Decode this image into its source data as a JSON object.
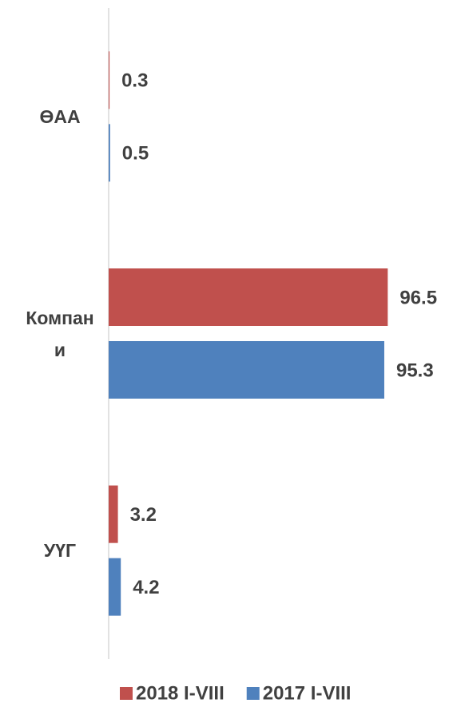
{
  "chart_data": {
    "type": "barh",
    "categories": [
      "ӨАА",
      "Компани",
      "УҮГ"
    ],
    "series": [
      {
        "name": "2018 I-VIII",
        "color": "#c0504d",
        "values": [
          0.3,
          96.5,
          3.2
        ]
      },
      {
        "name": "2017 I-VIII",
        "color": "#4f81bd",
        "values": [
          0.5,
          95.3,
          4.2
        ]
      }
    ],
    "xlim": [
      0,
      100
    ],
    "legend": "bottom"
  }
}
